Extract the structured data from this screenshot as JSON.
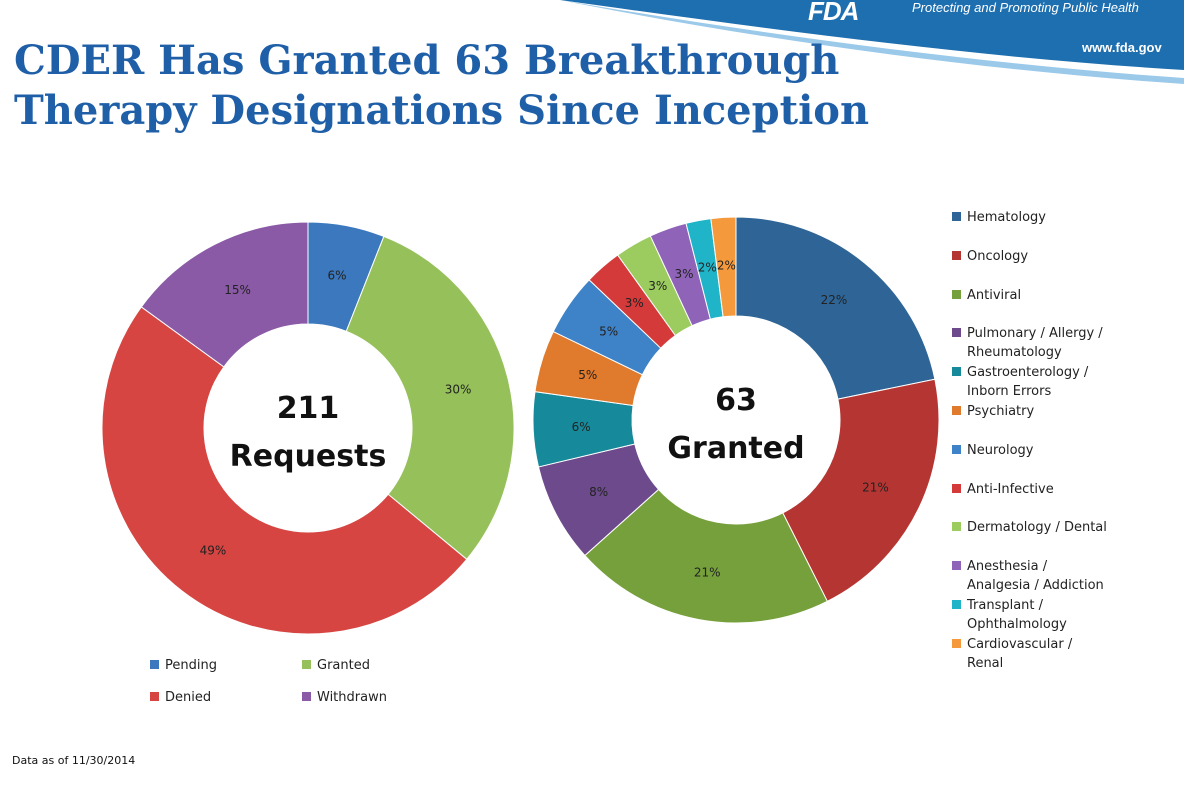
{
  "header": {
    "brand": "FDA",
    "tagline": "Protecting and Promoting Public Health",
    "website": "www.fda.gov"
  },
  "title": {
    "line1": "CDER Has Granted 63 Breakthrough",
    "line2": "Therapy Designations Since Inception"
  },
  "chart_data": [
    {
      "type": "pie",
      "variant": "donut",
      "center_label": [
        "211",
        "Requests"
      ],
      "categories": [
        "Pending",
        "Granted",
        "Denied",
        "Withdrawn"
      ],
      "values": [
        6,
        30,
        49,
        15
      ],
      "value_labels": [
        "6%",
        "30%",
        "49%",
        "15%"
      ],
      "colors": [
        "#3b78bd",
        "#96c15a",
        "#d64541",
        "#8a5aa6"
      ],
      "legend": "bottom"
    },
    {
      "type": "pie",
      "variant": "donut",
      "center_label": [
        "63",
        "Granted"
      ],
      "categories": [
        "Hematology",
        "Oncology",
        "Antiviral",
        "Pulmonary / Allergy / Rheumatology",
        "Gastroenterology / Inborn Errors",
        "Psychiatry",
        "Neurology",
        "Anti-Infective",
        "Dermatology / Dental",
        "Anesthesia / Analgesia / Addiction",
        "Transplant / Ophthalmology",
        "Cardiovascular / Renal"
      ],
      "values": [
        22,
        21,
        21,
        8,
        6,
        5,
        5,
        3,
        3,
        3,
        2,
        2
      ],
      "value_labels": [
        "22%",
        "21%",
        "21%",
        "8%",
        "6%",
        "5%",
        "5%",
        "3%",
        "3%",
        "3%",
        "2%",
        "2%"
      ],
      "colors": [
        "#2e6596",
        "#b53532",
        "#76a03b",
        "#6d4a8c",
        "#168a9a",
        "#e07a2c",
        "#3e82c8",
        "#d43a3a",
        "#9ccc5f",
        "#8f64b8",
        "#1fb4c8",
        "#f59a3c"
      ],
      "legend": "right"
    }
  ],
  "left_legend": [
    {
      "label": "Pending",
      "color": "#3b78bd"
    },
    {
      "label": "Granted",
      "color": "#96c15a"
    },
    {
      "label": "Denied",
      "color": "#d64541"
    },
    {
      "label": "Withdrawn",
      "color": "#8a5aa6"
    }
  ],
  "right_legend": [
    {
      "label": "Hematology",
      "color": "#2e6596"
    },
    {
      "label": "Oncology",
      "color": "#b53532"
    },
    {
      "label": "Antiviral",
      "color": "#76a03b"
    },
    {
      "label": "Pulmonary / Allergy /\nRheumatology",
      "color": "#6d4a8c"
    },
    {
      "label": "Gastroenterology /\nInborn Errors",
      "color": "#168a9a"
    },
    {
      "label": "Psychiatry",
      "color": "#e07a2c"
    },
    {
      "label": "Neurology",
      "color": "#3e82c8"
    },
    {
      "label": "Anti-Infective",
      "color": "#d43a3a"
    },
    {
      "label": "Dermatology / Dental",
      "color": "#9ccc5f"
    },
    {
      "label": "Anesthesia /\nAnalgesia / Addiction",
      "color": "#8f64b8"
    },
    {
      "label": "Transplant /\nOphthalmology",
      "color": "#1fb4c8"
    },
    {
      "label": "Cardiovascular /\nRenal",
      "color": "#f59a3c"
    }
  ],
  "footnote": "Data as of 11/30/2014"
}
